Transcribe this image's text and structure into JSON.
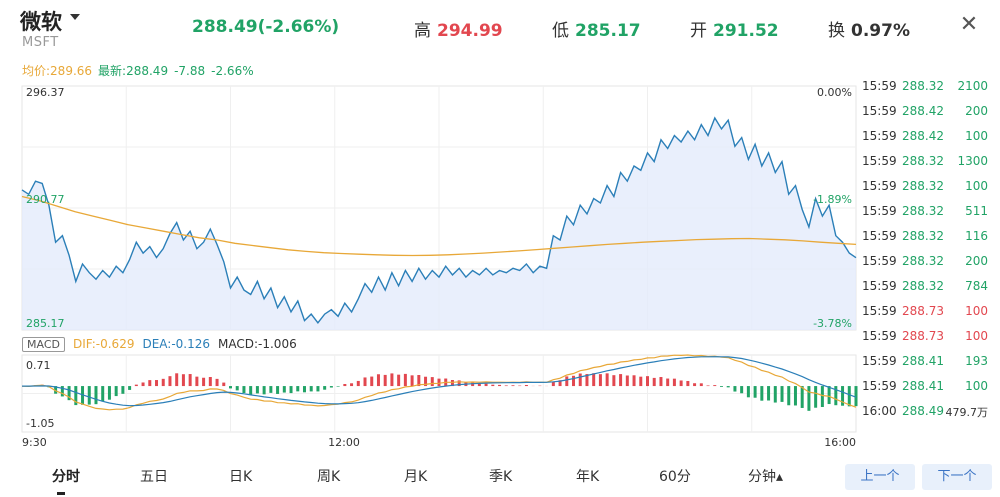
{
  "header": {
    "name": "微软",
    "ticker": "MSFT",
    "price_change": "288.49(-2.66%)",
    "high_label": "高",
    "high_value": "294.99",
    "low_label": "低",
    "low_value": "285.17",
    "open_label": "开",
    "open_value": "291.52",
    "turnover_label": "换",
    "turnover_value": "0.97%"
  },
  "info_line": {
    "avg": "均价:289.66",
    "latest": "最新:288.49",
    "change": "-7.88",
    "pct": "-2.66%"
  },
  "price_axis": {
    "top": "296.37",
    "mid": "290.77",
    "bottom": "285.17",
    "pct_top": "0.00%",
    "pct_mid": "-1.89%",
    "pct_bottom": "-3.78%"
  },
  "macd": {
    "tag": "MACD",
    "dif": "DIF:-0.629",
    "dea": "DEA:-0.126",
    "macd": "MACD:-1.006",
    "axis_top": "0.71",
    "axis_bottom": "-1.05"
  },
  "time_axis": {
    "start": "9:30",
    "mid": "12:00",
    "end": "16:00"
  },
  "trades": [
    {
      "time": "15:59",
      "price": "288.32",
      "vol": "2100",
      "dir": "green"
    },
    {
      "time": "15:59",
      "price": "288.42",
      "vol": "200",
      "dir": "green"
    },
    {
      "time": "15:59",
      "price": "288.42",
      "vol": "100",
      "dir": "green"
    },
    {
      "time": "15:59",
      "price": "288.32",
      "vol": "1300",
      "dir": "green"
    },
    {
      "time": "15:59",
      "price": "288.32",
      "vol": "100",
      "dir": "green"
    },
    {
      "time": "15:59",
      "price": "288.32",
      "vol": "511",
      "dir": "green"
    },
    {
      "time": "15:59",
      "price": "288.32",
      "vol": "116",
      "dir": "green"
    },
    {
      "time": "15:59",
      "price": "288.32",
      "vol": "200",
      "dir": "green"
    },
    {
      "time": "15:59",
      "price": "288.32",
      "vol": "784",
      "dir": "green"
    },
    {
      "time": "15:59",
      "price": "288.73",
      "vol": "100",
      "dir": "red"
    },
    {
      "time": "15:59",
      "price": "288.73",
      "vol": "100",
      "dir": "red"
    },
    {
      "time": "15:59",
      "price": "288.41",
      "vol": "193",
      "dir": "green"
    },
    {
      "time": "15:59",
      "price": "288.41",
      "vol": "100",
      "dir": "green"
    },
    {
      "time": "16:00",
      "price": "288.49",
      "vol": "479.7万",
      "dir": "green"
    }
  ],
  "tabs": [
    "分时",
    "五日",
    "日K",
    "周K",
    "月K",
    "季K",
    "年K",
    "60分",
    "分钟▴"
  ],
  "nav": {
    "prev": "上一个",
    "next": "下一个"
  },
  "colors": {
    "up": "#e2474f",
    "down": "#21a366",
    "price_line": "#2b7fb8",
    "avg_line": "#e8a838"
  },
  "chart_data": {
    "type": "line",
    "price_ylim": [
      285.17,
      296.37
    ],
    "price_series": [
      291.6,
      291.4,
      292.0,
      291.9,
      290.9,
      289.2,
      289.5,
      288.6,
      287.4,
      288.2,
      287.8,
      287.5,
      287.9,
      287.6,
      288.1,
      287.8,
      288.4,
      289.2,
      288.7,
      289.0,
      288.5,
      288.9,
      289.6,
      290.1,
      289.3,
      289.7,
      288.9,
      289.2,
      289.8,
      289.1,
      288.3,
      287.1,
      287.6,
      287.0,
      286.8,
      287.4,
      286.6,
      287.1,
      286.2,
      286.7,
      286.0,
      286.5,
      285.6,
      285.9,
      285.5,
      285.9,
      286.1,
      285.8,
      286.4,
      286.0,
      286.6,
      287.3,
      286.9,
      287.6,
      287.0,
      287.8,
      287.2,
      287.9,
      287.4,
      288.0,
      287.5,
      287.9,
      287.6,
      288.1,
      287.7,
      288.0,
      287.6,
      287.9,
      287.7,
      288.0,
      287.7,
      287.9,
      287.8,
      288.0,
      287.9,
      288.2,
      287.8,
      288.1,
      288.0,
      289.5,
      289.3,
      290.4,
      290.0,
      290.9,
      290.5,
      291.2,
      291.0,
      291.8,
      291.3,
      292.4,
      292.0,
      292.7,
      292.5,
      293.3,
      292.9,
      293.9,
      293.5,
      294.1,
      293.8,
      294.3,
      293.9,
      294.6,
      294.1,
      294.9,
      294.4,
      294.8,
      293.6,
      294.0,
      293.0,
      293.7,
      292.7,
      293.3,
      292.4,
      292.9,
      291.4,
      291.8,
      290.7,
      289.9,
      291.2,
      290.4,
      290.9,
      289.5,
      289.2,
      288.7,
      288.49
    ],
    "avg_series": [
      291.3,
      291.1,
      290.85,
      290.6,
      290.4,
      290.2,
      290.0,
      289.85,
      289.7,
      289.55,
      289.4,
      289.3,
      289.15,
      289.05,
      288.95,
      288.85,
      288.78,
      288.72,
      288.68,
      288.65,
      288.62,
      288.6,
      288.59,
      288.6,
      288.62,
      288.66,
      288.7,
      288.75,
      288.8,
      288.86,
      288.92,
      288.98,
      289.04,
      289.1,
      289.15,
      289.2,
      289.24,
      289.28,
      289.32,
      289.34,
      289.36,
      289.37,
      289.34,
      289.31,
      289.26,
      289.2,
      289.15,
      289.1
    ],
    "macd_ylim": [
      -1.05,
      0.71
    ],
    "time_labels": [
      "9:30",
      "12:00",
      "16:00"
    ]
  }
}
